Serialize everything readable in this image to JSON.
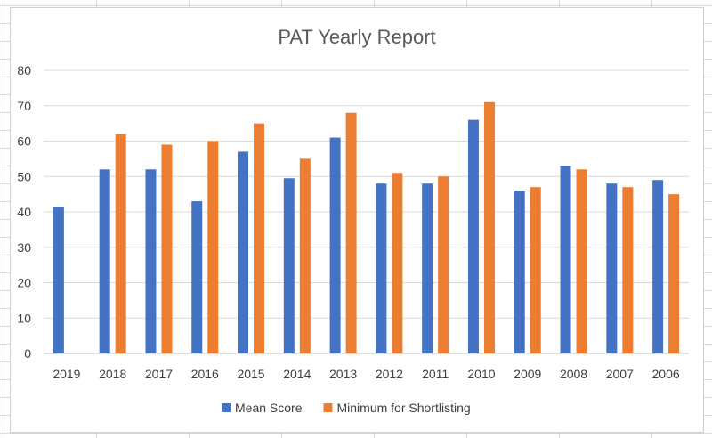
{
  "chart_data": {
    "type": "bar",
    "title": "PAT Yearly Report",
    "xlabel": "",
    "ylabel": "",
    "categories": [
      "2019",
      "2018",
      "2017",
      "2016",
      "2015",
      "2014",
      "2013",
      "2012",
      "2011",
      "2010",
      "2009",
      "2008",
      "2007",
      "2006"
    ],
    "series": [
      {
        "name": "Mean Score",
        "color": "#4472C4",
        "values": [
          41.5,
          52,
          52,
          43,
          57,
          49.5,
          61,
          48,
          48,
          66,
          46,
          53,
          48,
          49
        ]
      },
      {
        "name": "Minimum for Shortlisting",
        "color": "#ED7D31",
        "values": [
          null,
          62,
          59,
          60,
          65,
          55,
          68,
          51,
          50,
          71,
          47,
          52,
          47,
          45
        ]
      }
    ],
    "ylim": [
      0,
      80
    ],
    "yticks": [
      0,
      10,
      20,
      30,
      40,
      50,
      60,
      70,
      80
    ],
    "grid": true,
    "legend_position": "bottom"
  }
}
